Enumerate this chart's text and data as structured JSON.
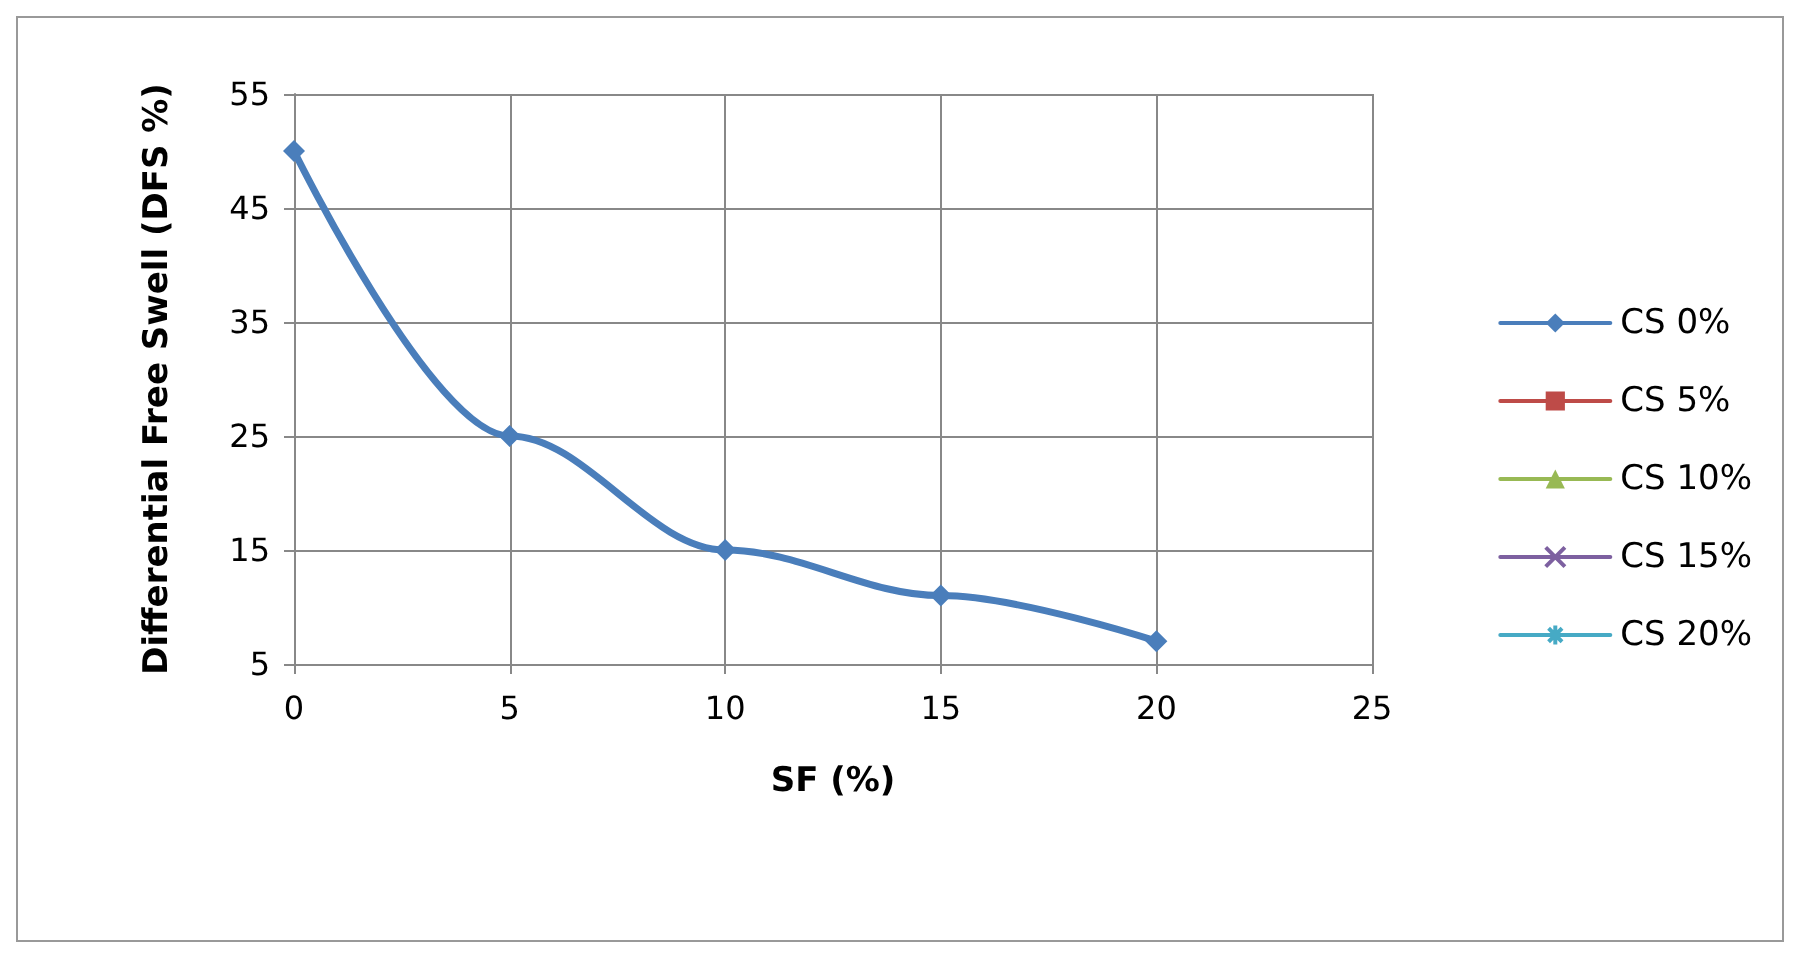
{
  "chart_data": {
    "type": "line",
    "xlabel": "SF (%)",
    "ylabel": "Differential Free Swell (DFS %)",
    "x": [
      0,
      5,
      10,
      15,
      20
    ],
    "series": [
      {
        "name": "CS 0%",
        "color": "#4a7ebb",
        "marker": "diamond",
        "values": [
          50,
          25,
          15,
          11,
          7
        ]
      },
      {
        "name": "CS 5%",
        "color": "#be4b48",
        "marker": "square",
        "values": [
          null,
          null,
          null,
          null,
          null
        ]
      },
      {
        "name": "CS 10%",
        "color": "#98b954",
        "marker": "triangle",
        "values": [
          null,
          null,
          null,
          null,
          null
        ]
      },
      {
        "name": "CS 15%",
        "color": "#7d60a0",
        "marker": "cross",
        "values": [
          null,
          null,
          null,
          null,
          null
        ]
      },
      {
        "name": "CS 20%",
        "color": "#46aac5",
        "marker": "star",
        "values": [
          null,
          null,
          null,
          null,
          null
        ]
      }
    ],
    "xlim": [
      0,
      25
    ],
    "xticks": [
      0,
      5,
      10,
      15,
      20,
      25
    ],
    "ylim": [
      5,
      55
    ],
    "yticks": [
      5,
      15,
      25,
      35,
      45,
      55
    ],
    "grid": true,
    "legend": "right"
  }
}
